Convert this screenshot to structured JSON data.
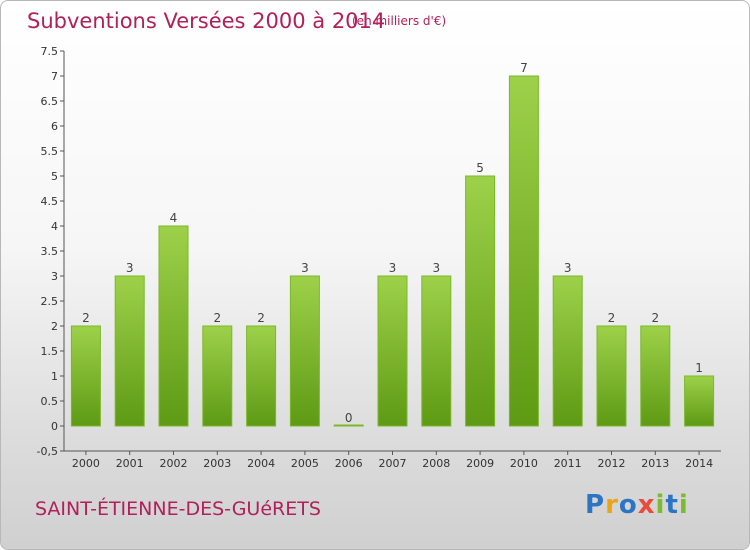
{
  "header": {
    "title": "Subventions Versées 2000 à 2014",
    "subtitle": "(en milliers d'€)"
  },
  "footer": {
    "commune": "SAINT-ÉTIENNE-DES-GUéRETS",
    "logo_letters": [
      "P",
      "r",
      "o",
      "x",
      "i",
      "t",
      "i"
    ]
  },
  "colors": {
    "title": "#b0205a",
    "bar_top": "#9ed14a",
    "bar_bottom": "#5e9a14",
    "bar_edge": "#7cb82a"
  },
  "chart_data": {
    "type": "bar",
    "title": "Subventions Versées 2000 à 2014",
    "subtitle": "(en milliers d'€)",
    "xlabel": "",
    "ylabel": "",
    "categories": [
      "2000",
      "2001",
      "2002",
      "2003",
      "2004",
      "2005",
      "2006",
      "2007",
      "2008",
      "2009",
      "2010",
      "2011",
      "2012",
      "2013",
      "2014"
    ],
    "values": [
      2,
      3,
      4,
      2,
      2,
      3,
      0,
      3,
      3,
      5,
      7,
      3,
      2,
      2,
      1
    ],
    "ylim": [
      -0.5,
      7.5
    ],
    "yticks": [
      "-0,5",
      "0",
      "0.5",
      "1",
      "1.5",
      "2",
      "2.5",
      "3",
      "3.5",
      "4",
      "4.5",
      "5",
      "5.5",
      "6",
      "6.5",
      "7",
      "7.5"
    ],
    "grid": false,
    "legend": "none"
  }
}
